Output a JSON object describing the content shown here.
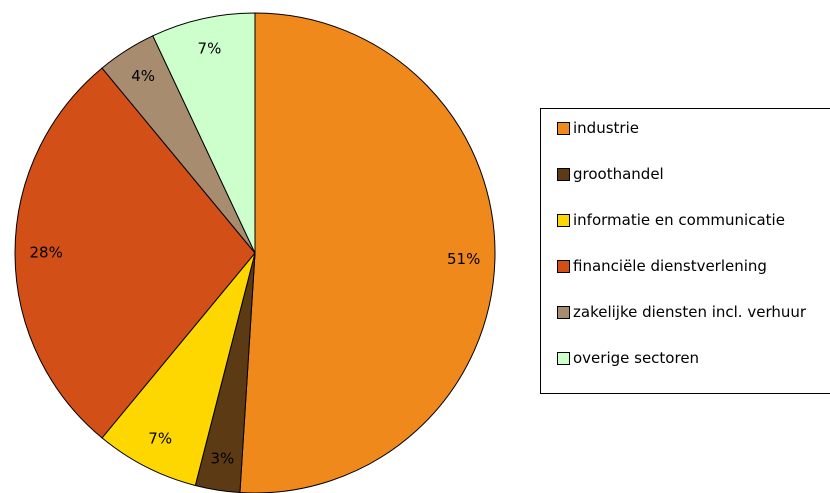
{
  "chart_data": {
    "type": "pie",
    "categories": [
      "industrie",
      "groothandel",
      "informatie en communicatie",
      "financiële dienstverlening",
      "zakelijke diensten incl. verhuur",
      "overige sectoren"
    ],
    "values": [
      51,
      3,
      7,
      28,
      4,
      7
    ],
    "value_labels": [
      "51%",
      "3%",
      "7%",
      "28%",
      "4%",
      "7%"
    ],
    "colors": [
      "#f0891c",
      "#5c3a14",
      "#ffd700",
      "#d24f18",
      "#a88c70",
      "#ccffcc"
    ],
    "legend": "right"
  }
}
